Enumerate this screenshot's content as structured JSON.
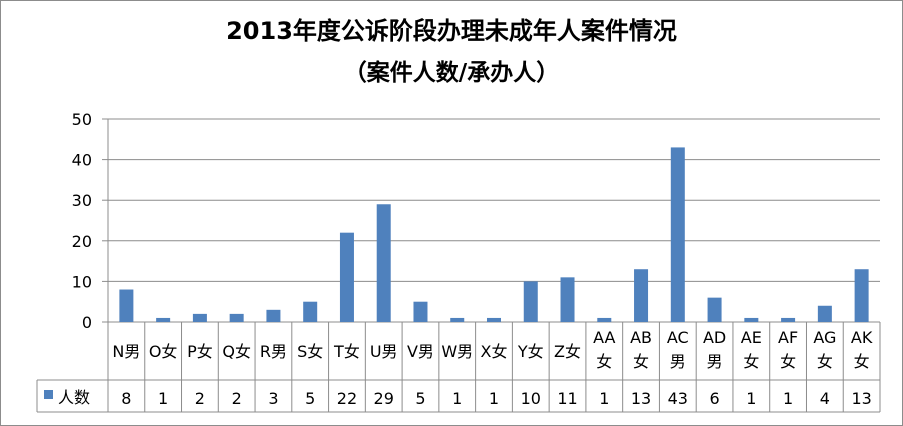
{
  "chart_data": {
    "type": "bar",
    "title": "2013年度公诉阶段办理未成年人案件情况",
    "subtitle": "（案件人数/承办人）",
    "categories": [
      "N男",
      "O女",
      "P女",
      "Q女",
      "R男",
      "S女",
      "T女",
      "U男",
      "V男",
      "W男",
      "X女",
      "Y女",
      "Z女",
      "AA女",
      "AB女",
      "AC男",
      "AD男",
      "AE女",
      "AF女",
      "AG女",
      "AK女"
    ],
    "series": [
      {
        "name": "人数",
        "values": [
          8,
          1,
          2,
          2,
          3,
          5,
          22,
          29,
          5,
          1,
          1,
          10,
          11,
          1,
          13,
          43,
          6,
          1,
          1,
          4,
          13
        ]
      }
    ],
    "yticks": [
      "0",
      "10",
      "20",
      "30",
      "40",
      "50"
    ],
    "ylim": [
      0,
      50
    ],
    "grid": true,
    "legend": "data-table",
    "bar_color": "#4f81bd"
  }
}
